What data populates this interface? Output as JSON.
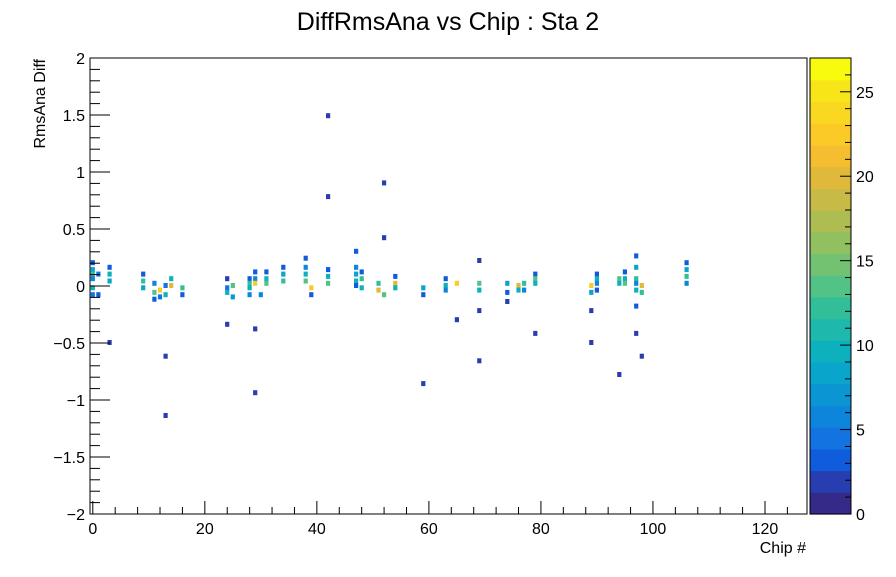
{
  "chart_data": {
    "type": "heatmap",
    "title": "DiffRmsAna vs Chip : Sta 2",
    "xlabel": "Chip #",
    "ylabel": "RmsAna Diff",
    "xlim": [
      -0.5,
      127.5
    ],
    "ylim": [
      -2,
      2
    ],
    "x_ticks": [
      0,
      20,
      40,
      60,
      80,
      100,
      120
    ],
    "x_tick_labels": [
      "0",
      "20",
      "40",
      "60",
      "80",
      "100",
      "120"
    ],
    "y_ticks": [
      -2,
      -1.5,
      -1,
      -0.5,
      0,
      0.5,
      1,
      1.5,
      2
    ],
    "y_tick_labels": [
      "−2",
      "−1.5",
      "−1",
      "−0.5",
      "0",
      "0.5",
      "1",
      "1.5",
      "2"
    ],
    "colorbar": {
      "min": 0,
      "max": 27,
      "ticks": [
        0,
        5,
        10,
        15,
        20,
        25
      ],
      "tick_labels": [
        "0",
        "5",
        "10",
        "15",
        "20",
        "25"
      ]
    },
    "cell_height": 0.02,
    "cells": [
      [
        0,
        0.2,
        3
      ],
      [
        0,
        0.14,
        8
      ],
      [
        0,
        0.1,
        12
      ],
      [
        0,
        0.06,
        6
      ],
      [
        0,
        -0.02,
        10
      ],
      [
        0,
        -0.08,
        4
      ],
      [
        1,
        -0.08,
        3
      ],
      [
        1,
        0.1,
        4
      ],
      [
        3,
        0.16,
        3
      ],
      [
        3,
        0.1,
        10
      ],
      [
        3,
        0.04,
        8
      ],
      [
        3,
        -0.5,
        2
      ],
      [
        9,
        0.1,
        3
      ],
      [
        9,
        0.04,
        12
      ],
      [
        9,
        -0.02,
        8
      ],
      [
        11,
        0.02,
        6
      ],
      [
        11,
        -0.06,
        14
      ],
      [
        11,
        -0.12,
        3
      ],
      [
        12,
        -0.04,
        22
      ],
      [
        12,
        -0.1,
        5
      ],
      [
        13,
        -0.08,
        9
      ],
      [
        13,
        0.0,
        4
      ],
      [
        13,
        -0.62,
        2
      ],
      [
        13,
        -1.14,
        2
      ],
      [
        14,
        0.06,
        10
      ],
      [
        14,
        0.0,
        20
      ],
      [
        16,
        -0.02,
        12
      ],
      [
        16,
        -0.08,
        3
      ],
      [
        24,
        0.06,
        2
      ],
      [
        24,
        -0.02,
        5
      ],
      [
        24,
        -0.06,
        9
      ],
      [
        24,
        -0.34,
        2
      ],
      [
        25,
        -0.1,
        7
      ],
      [
        25,
        0.0,
        14
      ],
      [
        28,
        0.06,
        3
      ],
      [
        28,
        0.02,
        12
      ],
      [
        28,
        -0.02,
        9
      ],
      [
        28,
        -0.08,
        6
      ],
      [
        29,
        0.12,
        3
      ],
      [
        29,
        0.06,
        6
      ],
      [
        29,
        0.02,
        22
      ],
      [
        29,
        -0.38,
        2
      ],
      [
        29,
        -0.94,
        2
      ],
      [
        30,
        -0.08,
        6
      ],
      [
        31,
        0.12,
        3
      ],
      [
        31,
        0.06,
        10
      ],
      [
        31,
        0.02,
        14
      ],
      [
        34,
        0.16,
        3
      ],
      [
        34,
        0.1,
        8
      ],
      [
        34,
        0.04,
        12
      ],
      [
        38,
        0.24,
        3
      ],
      [
        38,
        0.16,
        6
      ],
      [
        38,
        0.1,
        10
      ],
      [
        38,
        0.04,
        14
      ],
      [
        39,
        -0.02,
        22
      ],
      [
        39,
        -0.08,
        3
      ],
      [
        42,
        1.49,
        2
      ],
      [
        42,
        0.78,
        2
      ],
      [
        42,
        0.14,
        3
      ],
      [
        42,
        0.08,
        10
      ],
      [
        42,
        0.02,
        14
      ],
      [
        47,
        0.3,
        3
      ],
      [
        47,
        0.16,
        6
      ],
      [
        47,
        0.1,
        8
      ],
      [
        47,
        0.04,
        10
      ],
      [
        47,
        0.0,
        3
      ],
      [
        48,
        0.12,
        3
      ],
      [
        48,
        0.06,
        12
      ],
      [
        48,
        -0.02,
        9
      ],
      [
        51,
        0.02,
        12
      ],
      [
        51,
        -0.04,
        20
      ],
      [
        52,
        0.9,
        2
      ],
      [
        52,
        0.42,
        2
      ],
      [
        52,
        -0.08,
        14
      ],
      [
        54,
        0.08,
        3
      ],
      [
        54,
        0.02,
        20
      ],
      [
        54,
        -0.02,
        10
      ],
      [
        59,
        -0.02,
        8
      ],
      [
        59,
        -0.08,
        3
      ],
      [
        59,
        -0.86,
        2
      ],
      [
        63,
        0.06,
        3
      ],
      [
        63,
        0.0,
        10
      ],
      [
        63,
        -0.04,
        6
      ],
      [
        65,
        0.02,
        22
      ],
      [
        65,
        -0.3,
        2
      ],
      [
        69,
        0.22,
        2
      ],
      [
        69,
        0.02,
        14
      ],
      [
        69,
        -0.04,
        10
      ],
      [
        69,
        -0.22,
        2
      ],
      [
        69,
        -0.66,
        2
      ],
      [
        74,
        0.02,
        8
      ],
      [
        74,
        -0.06,
        3
      ],
      [
        74,
        -0.14,
        2
      ],
      [
        76,
        0.0,
        20
      ],
      [
        76,
        -0.04,
        10
      ],
      [
        77,
        0.02,
        12
      ],
      [
        77,
        -0.04,
        6
      ],
      [
        79,
        0.1,
        3
      ],
      [
        79,
        0.06,
        14
      ],
      [
        79,
        0.02,
        9
      ],
      [
        79,
        -0.42,
        2
      ],
      [
        89,
        0.0,
        22
      ],
      [
        89,
        -0.06,
        8
      ],
      [
        89,
        -0.22,
        2
      ],
      [
        89,
        -0.5,
        2
      ],
      [
        90,
        0.1,
        3
      ],
      [
        90,
        0.06,
        10
      ],
      [
        90,
        0.02,
        6
      ],
      [
        90,
        -0.04,
        3
      ],
      [
        94,
        0.06,
        14
      ],
      [
        94,
        0.02,
        10
      ],
      [
        94,
        -0.78,
        2
      ],
      [
        95,
        0.12,
        3
      ],
      [
        95,
        0.06,
        10
      ],
      [
        95,
        0.02,
        14
      ],
      [
        97,
        0.26,
        3
      ],
      [
        97,
        0.16,
        8
      ],
      [
        97,
        0.06,
        12
      ],
      [
        97,
        0.02,
        6
      ],
      [
        97,
        -0.04,
        10
      ],
      [
        97,
        -0.18,
        3
      ],
      [
        97,
        -0.42,
        2
      ],
      [
        98,
        0.0,
        20
      ],
      [
        98,
        -0.06,
        12
      ],
      [
        98,
        -0.62,
        2
      ],
      [
        106,
        0.2,
        3
      ],
      [
        106,
        0.14,
        8
      ],
      [
        106,
        0.08,
        12
      ],
      [
        106,
        0.02,
        6
      ]
    ]
  }
}
